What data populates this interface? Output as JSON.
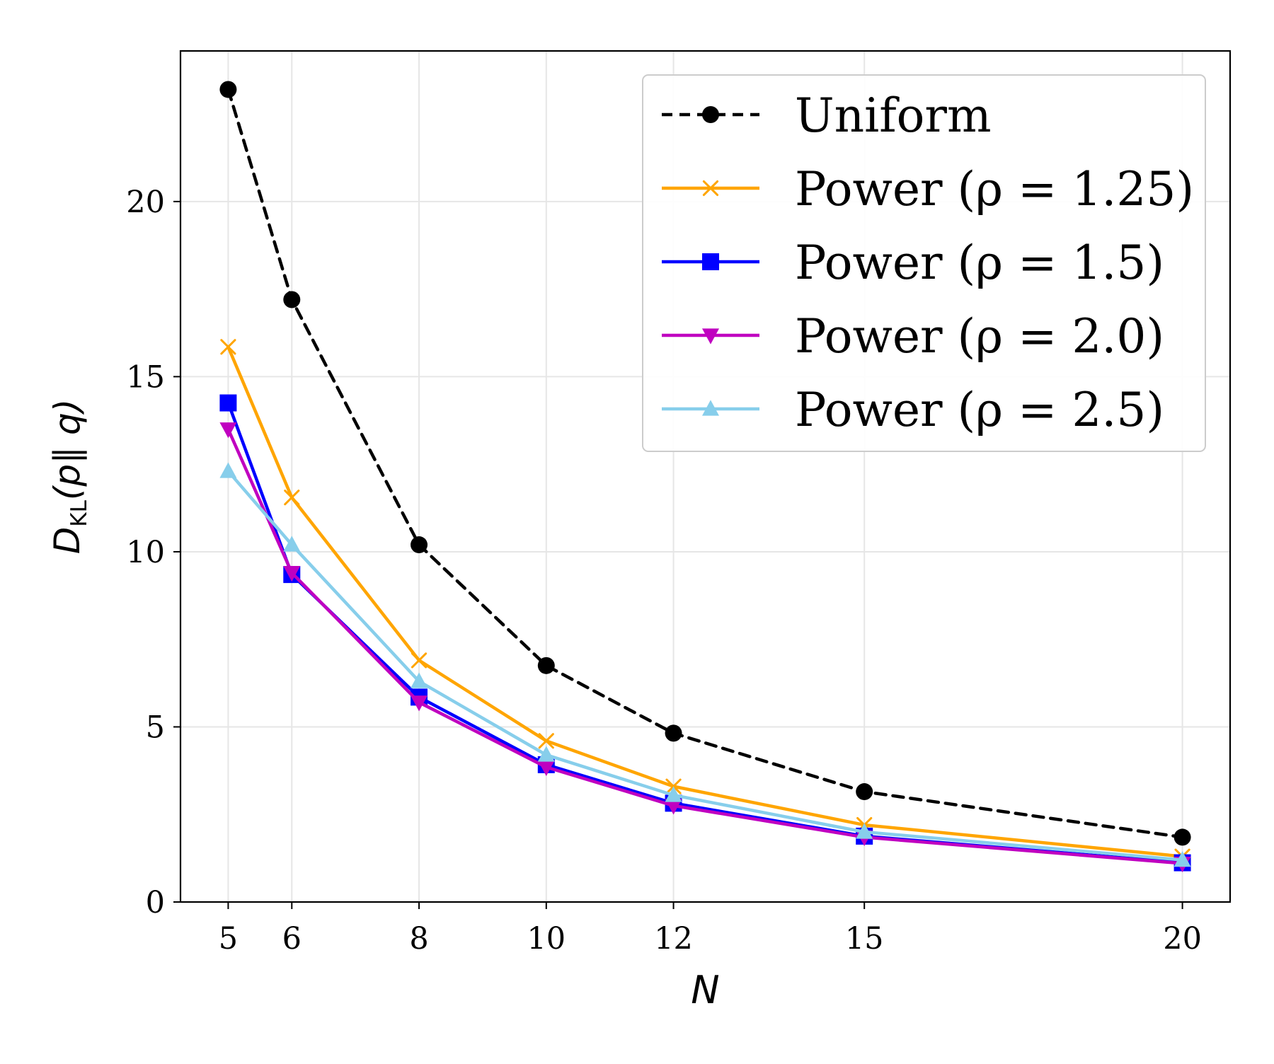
{
  "chart_data": {
    "type": "line",
    "title": "",
    "xlabel": "N",
    "ylabel": {
      "main": "D",
      "subscript": "KL",
      "rest": "(p∥ q)"
    },
    "x": [
      5,
      6,
      8,
      10,
      12,
      15,
      20
    ],
    "xticks": [
      "5",
      "6",
      "8",
      "10",
      "12",
      "15",
      "20"
    ],
    "yticks": [
      "0",
      "5",
      "10",
      "15",
      "20"
    ],
    "xlim": [
      4.25,
      20.75
    ],
    "ylim": [
      0,
      24.3
    ],
    "grid": true,
    "legend_position": "top-right",
    "series": [
      {
        "name": "Uniform",
        "color": "#000000",
        "line_style": "dashed",
        "marker": "circle",
        "values": [
          23.2,
          17.2,
          10.2,
          6.75,
          4.82,
          3.15,
          1.85
        ]
      },
      {
        "name": "Power (ρ = 1.25)",
        "color": "#ffa500",
        "line_style": "solid",
        "marker": "x",
        "values": [
          15.85,
          11.55,
          6.9,
          4.6,
          3.3,
          2.2,
          1.3
        ]
      },
      {
        "name": "Power (ρ = 1.5)",
        "color": "#0000ff",
        "line_style": "solid",
        "marker": "square",
        "values": [
          14.25,
          9.35,
          5.85,
          3.92,
          2.82,
          1.88,
          1.12
        ]
      },
      {
        "name": "Power (ρ = 2.0)",
        "color": "#c000c0",
        "line_style": "solid",
        "marker": "triangle-down",
        "values": [
          13.5,
          9.4,
          5.7,
          3.85,
          2.75,
          1.85,
          1.1
        ]
      },
      {
        "name": "Power (ρ = 2.5)",
        "color": "#87ceeb",
        "line_style": "solid",
        "marker": "triangle-up",
        "values": [
          12.3,
          10.2,
          6.3,
          4.2,
          3.05,
          2.0,
          1.2
        ]
      }
    ]
  }
}
